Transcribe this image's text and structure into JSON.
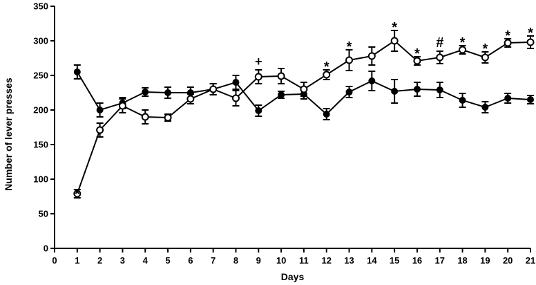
{
  "chart_data": {
    "type": "line",
    "title": "",
    "xlabel": "Days",
    "ylabel": "Number of lever presses",
    "xlim": [
      0,
      21
    ],
    "ylim": [
      0,
      350
    ],
    "x_ticks": [
      0,
      1,
      2,
      3,
      4,
      5,
      6,
      7,
      8,
      9,
      10,
      11,
      12,
      13,
      14,
      15,
      16,
      17,
      18,
      19,
      20,
      21
    ],
    "y_ticks": [
      0,
      50,
      100,
      150,
      200,
      250,
      300,
      350
    ],
    "grid": false,
    "legend": "none",
    "series": [
      {
        "marker": "filled-circle",
        "color": "#000000",
        "x": [
          1,
          2,
          3,
          4,
          5,
          6,
          7,
          8,
          9,
          10,
          11,
          12,
          13,
          14,
          15,
          16,
          17,
          18,
          19,
          20,
          21
        ],
        "values": [
          255,
          200,
          210,
          226,
          225,
          225,
          230,
          240,
          199,
          222,
          223,
          194,
          226,
          242,
          227,
          230,
          229,
          214,
          204,
          217,
          215
        ],
        "errors": [
          10,
          10,
          8,
          6,
          8,
          8,
          8,
          10,
          8,
          5,
          7,
          8,
          8,
          14,
          17,
          10,
          11,
          10,
          8,
          7,
          6
        ]
      },
      {
        "marker": "open-circle",
        "color": "#000000",
        "x": [
          1,
          2,
          3,
          4,
          5,
          6,
          7,
          8,
          9,
          10,
          11,
          12,
          13,
          14,
          15,
          16,
          17,
          18,
          19,
          20,
          21
        ],
        "values": [
          79,
          171,
          206,
          190,
          189,
          216,
          230,
          217,
          248,
          249,
          230,
          251,
          272,
          278,
          300,
          271,
          276,
          287,
          276,
          297,
          298
        ],
        "errors": [
          6,
          10,
          10,
          10,
          5,
          7,
          8,
          11,
          10,
          11,
          10,
          7,
          15,
          13,
          15,
          6,
          9,
          6,
          8,
          6,
          9
        ]
      }
    ],
    "annotations": [
      {
        "x": 1,
        "y": 79,
        "text": "*"
      },
      {
        "x": 9,
        "y": 248,
        "text": "+"
      },
      {
        "x": 12,
        "y": 251,
        "text": "*"
      },
      {
        "x": 13,
        "y": 272,
        "text": "*"
      },
      {
        "x": 15,
        "y": 300,
        "text": "*"
      },
      {
        "x": 16,
        "y": 271,
        "text": "*"
      },
      {
        "x": 17,
        "y": 276,
        "text": "#"
      },
      {
        "x": 18,
        "y": 287,
        "text": "*"
      },
      {
        "x": 19,
        "y": 276,
        "text": "*"
      },
      {
        "x": 20,
        "y": 297,
        "text": "*"
      },
      {
        "x": 21,
        "y": 298,
        "text": "*"
      }
    ]
  }
}
